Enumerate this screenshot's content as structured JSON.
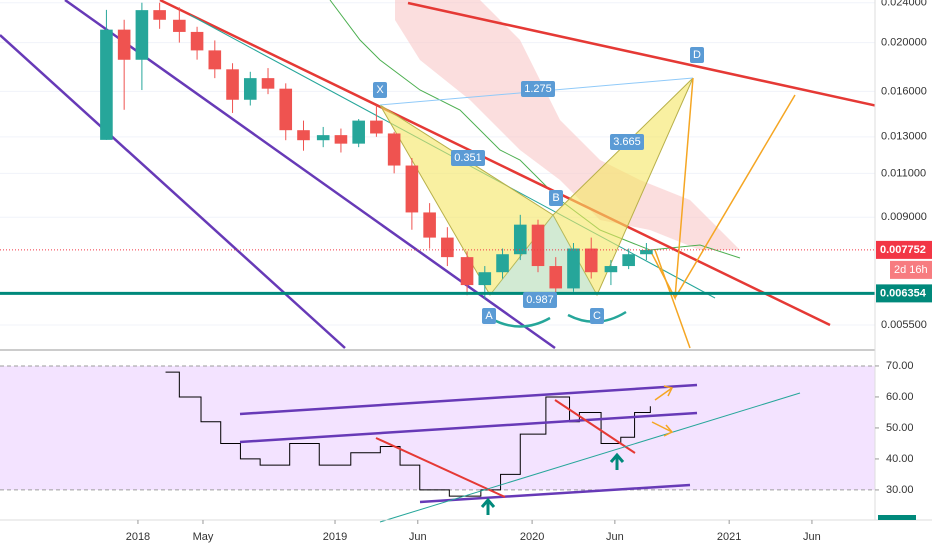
{
  "chart_data": [
    {
      "type": "candlestick",
      "log_scale": true,
      "up_color": "#26a69a",
      "down_color": "#ef5350",
      "xlim": [
        2017.3,
        2021.74
      ],
      "ylim": [
        0.00495,
        0.0243
      ],
      "yticks": [
        {
          "value": 0.0055,
          "label": "0.005500"
        },
        {
          "value": 0.009,
          "label": "0.009000"
        },
        {
          "value": 0.011,
          "label": "0.011000"
        },
        {
          "value": 0.013,
          "label": "0.013000"
        },
        {
          "value": 0.016,
          "label": "0.016000"
        },
        {
          "value": 0.02,
          "label": "0.020000"
        },
        {
          "value": 0.024,
          "label": "0.024000"
        }
      ],
      "x": [
        2017.84,
        2017.93,
        2018.02,
        2018.11,
        2018.21,
        2018.3,
        2018.39,
        2018.48,
        2018.57,
        2018.66,
        2018.75,
        2018.84,
        2018.94,
        2019.03,
        2019.12,
        2019.21,
        2019.3,
        2019.39,
        2019.48,
        2019.57,
        2019.67,
        2019.76,
        2019.85,
        2019.94,
        2020.03,
        2020.12,
        2020.21,
        2020.3,
        2020.4,
        2020.49,
        2020.58
      ],
      "open": [
        0.01282,
        0.02122,
        0.01849,
        0.0232,
        0.0222,
        0.021,
        0.0193,
        0.0177,
        0.0154,
        0.017,
        0.0162,
        0.0134,
        0.0128,
        0.0131,
        0.0126,
        0.014,
        0.0132,
        0.0114,
        0.0092,
        0.0082,
        0.0075,
        0.0066,
        0.007,
        0.0076,
        0.0087,
        0.0072,
        0.0065,
        0.0078,
        0.007,
        0.0072,
        0.0076
      ],
      "high": [
        0.02323,
        0.0222,
        0.024,
        0.024,
        0.0235,
        0.0215,
        0.0202,
        0.0182,
        0.0175,
        0.0178,
        0.0166,
        0.014,
        0.0136,
        0.0135,
        0.0141,
        0.015,
        0.0133,
        0.0118,
        0.0096,
        0.0086,
        0.0077,
        0.0072,
        0.0078,
        0.0091,
        0.0089,
        0.0075,
        0.008,
        0.0082,
        0.0074,
        0.0078,
        0.008
      ],
      "low": [
        0.01282,
        0.01471,
        0.0161,
        0.0213,
        0.02,
        0.0185,
        0.017,
        0.0145,
        0.015,
        0.0158,
        0.0128,
        0.0122,
        0.0124,
        0.0121,
        0.0124,
        0.013,
        0.011,
        0.0085,
        0.0078,
        0.0072,
        0.0063,
        0.0062,
        0.0068,
        0.0074,
        0.007,
        0.0063,
        0.0064,
        0.0068,
        0.0066,
        0.0071,
        0.0074
      ],
      "close": [
        0.02122,
        0.01849,
        0.0232,
        0.0222,
        0.021,
        0.0193,
        0.0177,
        0.0154,
        0.017,
        0.0162,
        0.0134,
        0.0128,
        0.0131,
        0.0126,
        0.014,
        0.0132,
        0.0114,
        0.0092,
        0.0082,
        0.0075,
        0.0066,
        0.007,
        0.0076,
        0.0087,
        0.0072,
        0.0065,
        0.0078,
        0.007,
        0.0072,
        0.0076,
        0.00775
      ],
      "price_labels": [
        {
          "value": 0.007752,
          "label": "0.007752",
          "color": "#f23645"
        },
        {
          "value": 0.006354,
          "label": "0.006354",
          "color": "#00897b"
        }
      ],
      "countdown": "2d 16h",
      "pattern_points": [
        "X",
        "A",
        "B",
        "C",
        "D"
      ],
      "ratios": [
        "1.275",
        "0.351",
        "3.665",
        "0.987"
      ]
    },
    {
      "type": "line",
      "step": true,
      "color": "#000000",
      "band": [
        30,
        70
      ],
      "band_color": "#f3e3ff",
      "xlim": [
        2017.3,
        2021.74
      ],
      "ylim": [
        20.3,
        74.5
      ],
      "yticks": [
        {
          "value": 30,
          "label": "30.00"
        },
        {
          "value": 40,
          "label": "40.00"
        },
        {
          "value": 50,
          "label": "50.00"
        },
        {
          "value": 60,
          "label": "60.00"
        },
        {
          "value": 70,
          "label": "70.00"
        }
      ],
      "xticks": [
        2018,
        {
          "value": 2018.33,
          "label": "May"
        },
        2019,
        {
          "value": 2019.42,
          "label": "Jun"
        },
        2020,
        {
          "value": 2020.42,
          "label": "Jun"
        },
        2021,
        {
          "value": 2021.42,
          "label": "Jun"
        }
      ],
      "x": [
        2018.14,
        2018.21,
        2018.32,
        2018.42,
        2018.52,
        2018.62,
        2018.77,
        2018.92,
        2019.08,
        2019.23,
        2019.33,
        2019.43,
        2019.58,
        2019.74,
        2019.84,
        2019.94,
        2020.07,
        2020.19,
        2020.24,
        2020.35,
        2020.45,
        2020.52,
        2020.6
      ],
      "values": [
        68,
        60,
        52,
        45,
        40,
        38,
        45,
        38,
        42,
        44,
        38,
        30,
        28,
        30,
        35,
        48,
        60,
        52,
        55,
        45,
        47,
        55,
        57
      ]
    }
  ]
}
